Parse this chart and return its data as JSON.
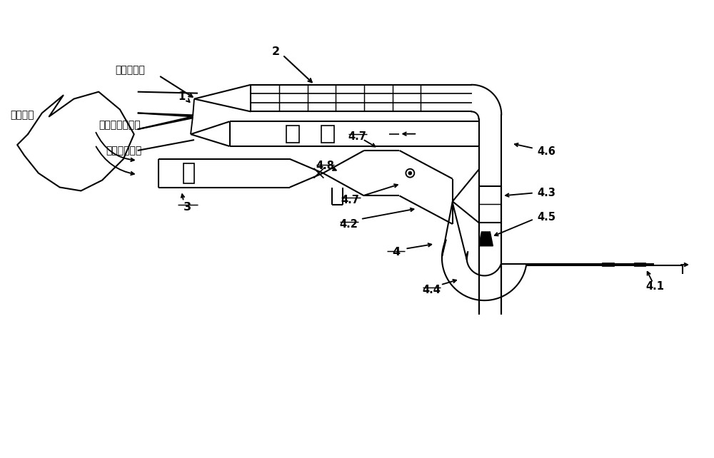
{
  "background_color": "#ffffff",
  "line_color": "#000000",
  "lw": 1.5,
  "fig_width": 10.0,
  "fig_height": 6.42,
  "labels": {
    "lean_gas_nozzle": "淡乏气喷口",
    "label1": "1",
    "label2": "2",
    "label3": "3",
    "dense_low_temp": "浓低温煤粉气流",
    "high_temp_flame": "高温火焰",
    "high_temp_flue": "高温烟气回流",
    "label4": "4",
    "label4_1": "4.1",
    "label4_2": "4.2",
    "label4_3": "4.3",
    "label4_4": "4.4",
    "label4_5": "4.5",
    "label4_6": "4.6",
    "label4_7a": "4.7",
    "label4_7b": "4.7",
    "label4_8": "4.8"
  }
}
